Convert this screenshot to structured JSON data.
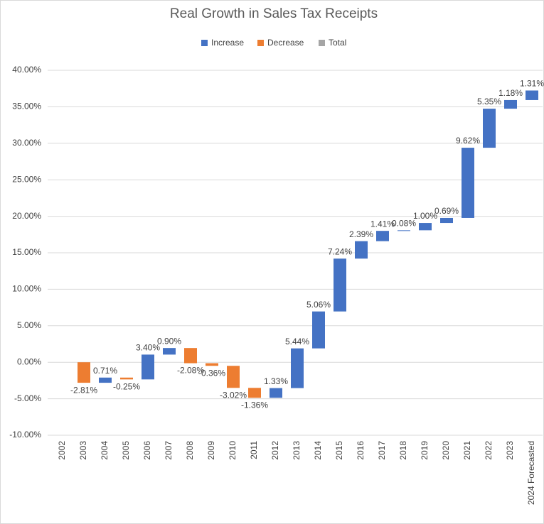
{
  "chart_data": {
    "type": "waterfall",
    "title": "Real Growth in Sales Tax Receipts",
    "legend": [
      {
        "name": "Increase",
        "color": "#4472c4"
      },
      {
        "name": "Decrease",
        "color": "#ed7d31"
      },
      {
        "name": "Total",
        "color": "#a5a5a5"
      }
    ],
    "categories": [
      "2002",
      "2003",
      "2004",
      "2005",
      "2006",
      "2007",
      "2008",
      "2009",
      "2010",
      "2011",
      "2012",
      "2013",
      "2014",
      "2015",
      "2016",
      "2017",
      "2018",
      "2019",
      "2020",
      "2021",
      "2022",
      "2023",
      "2024 Forecasted"
    ],
    "values": [
      null,
      -2.81,
      0.71,
      -0.25,
      3.4,
      0.9,
      -2.08,
      -0.36,
      -3.02,
      -1.36,
      1.33,
      5.44,
      5.06,
      7.24,
      2.39,
      1.41,
      0.08,
      1.0,
      0.69,
      9.62,
      5.35,
      1.18,
      1.31
    ],
    "value_labels": [
      null,
      "-2.81%",
      "0.71%",
      "-0.25%",
      "3.40%",
      "0.90%",
      "-2.08%",
      "-0.36%",
      "-3.02%",
      "-1.36%",
      "1.33%",
      "5.44%",
      "5.06%",
      "7.24%",
      "2.39%",
      "1.41%",
      "0.08%",
      "1.00%",
      "0.69%",
      "9.62%",
      "5.35%",
      "1.18%",
      "1.31%"
    ],
    "ylim": [
      -10,
      40
    ],
    "yticks": [
      {
        "value": -10,
        "label": "-10.00%"
      },
      {
        "value": -5,
        "label": "-5.00%"
      },
      {
        "value": 0,
        "label": "0.00%"
      },
      {
        "value": 5,
        "label": "5.00%"
      },
      {
        "value": 10,
        "label": "10.00%"
      },
      {
        "value": 15,
        "label": "15.00%"
      },
      {
        "value": 20,
        "label": "20.00%"
      },
      {
        "value": 25,
        "label": "25.00%"
      },
      {
        "value": 30,
        "label": "30.00%"
      },
      {
        "value": 35,
        "label": "35.00%"
      },
      {
        "value": 40,
        "label": "40.00%"
      }
    ],
    "grid": true
  }
}
